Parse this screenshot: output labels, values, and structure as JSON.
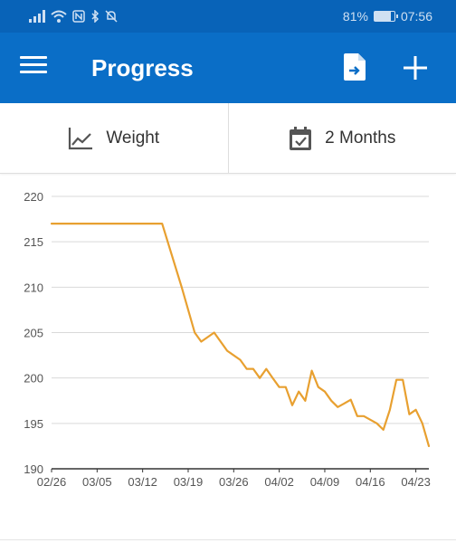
{
  "status_bar": {
    "battery": "81%",
    "battery_level": 0.81,
    "time": "07:56",
    "icons": [
      "signal-icon",
      "wifi-icon",
      "nfc-icon",
      "bluetooth-icon",
      "mute-icon",
      "battery-icon"
    ]
  },
  "toolbar": {
    "title": "Progress",
    "icons": [
      "menu-icon",
      "export-icon",
      "add-icon"
    ]
  },
  "filters": {
    "metric_label": "Weight",
    "period_label": "2 Months",
    "icons": [
      "chart-line-icon",
      "calendar-check-icon"
    ]
  },
  "colors": {
    "primary": "#0a6ec7",
    "status_bar": "#0863b8",
    "line": "#e8a030",
    "grid": "#d9d9d9",
    "axis_text": "#555555"
  },
  "chart_data": {
    "type": "line",
    "ylim": [
      190,
      220
    ],
    "yticks": [
      "190",
      "195",
      "200",
      "205",
      "210",
      "215",
      "220"
    ],
    "x_tick_labels": [
      "02/26",
      "03/05",
      "03/12",
      "03/19",
      "03/26",
      "04/02",
      "04/09",
      "04/16",
      "04/23"
    ],
    "x_range": [
      "2023-02-26",
      "2023-04-25"
    ],
    "grid": true,
    "series": [
      {
        "x": [
          "2023-02-26",
          "2023-03-15",
          "2023-03-18",
          "2023-03-20",
          "2023-03-21",
          "2023-03-23",
          "2023-03-25",
          "2023-03-27",
          "2023-03-28",
          "2023-03-29",
          "2023-03-30",
          "2023-03-31",
          "2023-04-01",
          "2023-04-02",
          "2023-04-03",
          "2023-04-04",
          "2023-04-05",
          "2023-04-06",
          "2023-04-07",
          "2023-04-08",
          "2023-04-09",
          "2023-04-10",
          "2023-04-11",
          "2023-04-12",
          "2023-04-13",
          "2023-04-14",
          "2023-04-15",
          "2023-04-16",
          "2023-04-17",
          "2023-04-18",
          "2023-04-19",
          "2023-04-20",
          "2023-04-21",
          "2023-04-22",
          "2023-04-23",
          "2023-04-24",
          "2023-04-25"
        ],
        "y": [
          217,
          217,
          210,
          205,
          204,
          205,
          203,
          202,
          201,
          201,
          200,
          201,
          200,
          199,
          199,
          197,
          198.5,
          197.5,
          200.8,
          199,
          198.5,
          197.5,
          196.8,
          197.2,
          197.6,
          195.8,
          195.8,
          195.4,
          195,
          194.3,
          196.5,
          199.8,
          199.8,
          196,
          196.5,
          195,
          192.5
        ]
      }
    ]
  }
}
